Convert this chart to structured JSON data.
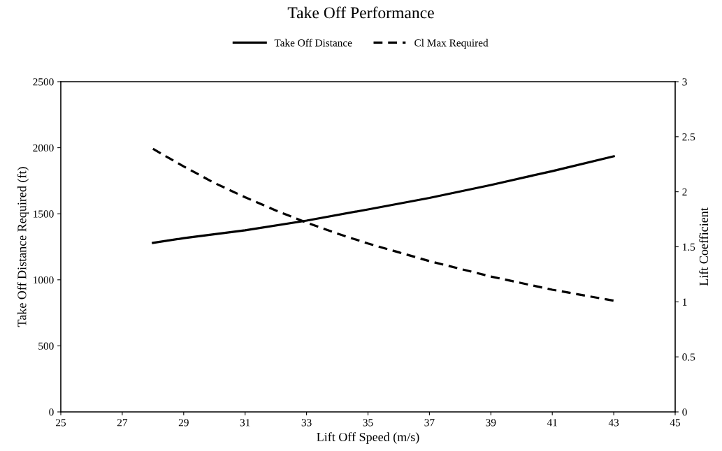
{
  "chart_data": {
    "type": "line",
    "title": "Take Off Performance",
    "xlabel": "Lift Off Speed (m/s)",
    "ylabel": "Take Off Distance Required (ft)",
    "y2label": "Lift Coefficient",
    "xlim": [
      25,
      45
    ],
    "xticks": [
      25,
      27,
      29,
      31,
      33,
      35,
      37,
      39,
      41,
      43,
      45
    ],
    "ylim": [
      0,
      2500
    ],
    "yticks": [
      0,
      500,
      1000,
      1500,
      2000,
      2500
    ],
    "y2lim": [
      0,
      3
    ],
    "y2ticks": [
      0,
      0.5,
      1,
      1.5,
      2,
      2.5,
      3
    ],
    "legend": "top",
    "grid": false,
    "series": [
      {
        "name": "Take Off Distance",
        "color": "#000000",
        "line_style": "solid",
        "x": [
          28,
          29,
          31,
          33,
          35,
          37,
          39,
          41,
          43
        ],
        "values": [
          1280,
          1315,
          1375,
          1448,
          1533,
          1620,
          1718,
          1823,
          1935
        ]
      },
      {
        "name": "Cl Max Required",
        "color": "#000000",
        "line_style": "dashed",
        "axis": "y2",
        "x": [
          28,
          29,
          30,
          31,
          32,
          33,
          34,
          35,
          36,
          37,
          38,
          39,
          40,
          41,
          42,
          43
        ],
        "values": [
          2.39,
          2.23,
          2.08,
          1.95,
          1.83,
          1.72,
          1.62,
          1.53,
          1.45,
          1.37,
          1.3,
          1.23,
          1.17,
          1.11,
          1.06,
          1.01
        ]
      }
    ]
  }
}
